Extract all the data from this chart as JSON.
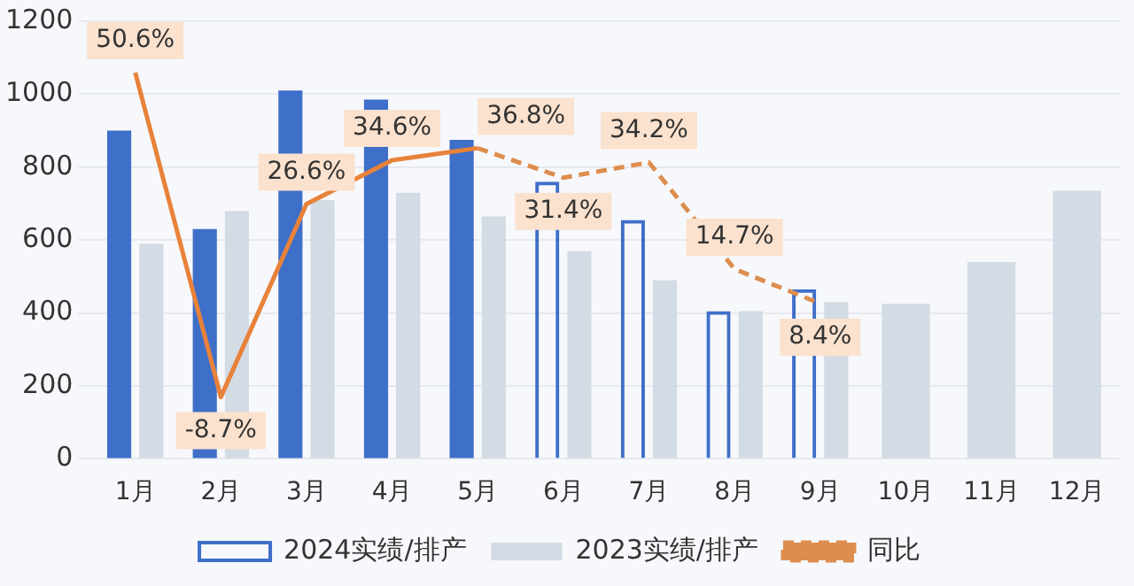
{
  "chart_data": {
    "type": "bar",
    "categories": [
      "1月",
      "2月",
      "3月",
      "4月",
      "5月",
      "6月",
      "7月",
      "8月",
      "9月",
      "10月",
      "11月",
      "12月"
    ],
    "series": [
      {
        "type": "bar",
        "color": "#3e6fc9",
        "values": [
          900,
          630,
          1010,
          985,
          875,
          null,
          null,
          null,
          null,
          null,
          null,
          null
        ]
      },
      {
        "type": "bar",
        "name": "2024实绩/排产",
        "color": "#3e6fc9",
        "line_style": "dashed",
        "values": [
          null,
          null,
          null,
          null,
          null,
          760,
          655,
          405,
          465,
          null,
          null,
          null
        ]
      },
      {
        "type": "bar",
        "name": "2023实绩/排产",
        "color": "#d3dbe4",
        "values": [
          590,
          680,
          710,
          730,
          665,
          570,
          490,
          405,
          430,
          425,
          540,
          735
        ]
      },
      {
        "type": "line",
        "axis": "y2",
        "color": "#e8823a",
        "line_style": "solid",
        "values": [
          50.6,
          -8.7,
          26.6,
          34.6,
          36.8,
          null,
          null,
          null,
          null,
          null,
          null,
          null
        ],
        "value_labels": [
          "50.6%",
          "-8.7%",
          "26.6%",
          "34.6%",
          "36.8%",
          null,
          null,
          null,
          null,
          null,
          null,
          null
        ]
      },
      {
        "type": "line",
        "axis": "y2",
        "name": "同比",
        "color": "#dd8d4e",
        "line_style": "dashed",
        "values": [
          null,
          null,
          null,
          null,
          36.8,
          31.4,
          34.2,
          14.7,
          8.4,
          null,
          null,
          null
        ],
        "value_labels": [
          null,
          null,
          null,
          null,
          null,
          "31.4%",
          "34.2%",
          "14.7%",
          "8.4%",
          null,
          null,
          null
        ]
      }
    ],
    "ylim": [
      0,
      1200
    ],
    "yticks": [
      0,
      200,
      400,
      600,
      800,
      1000,
      1200
    ],
    "y2lim": [
      -20,
      60
    ],
    "tick_labels": "xy",
    "grid": "y",
    "legend": "bottom",
    "marker": "none"
  }
}
